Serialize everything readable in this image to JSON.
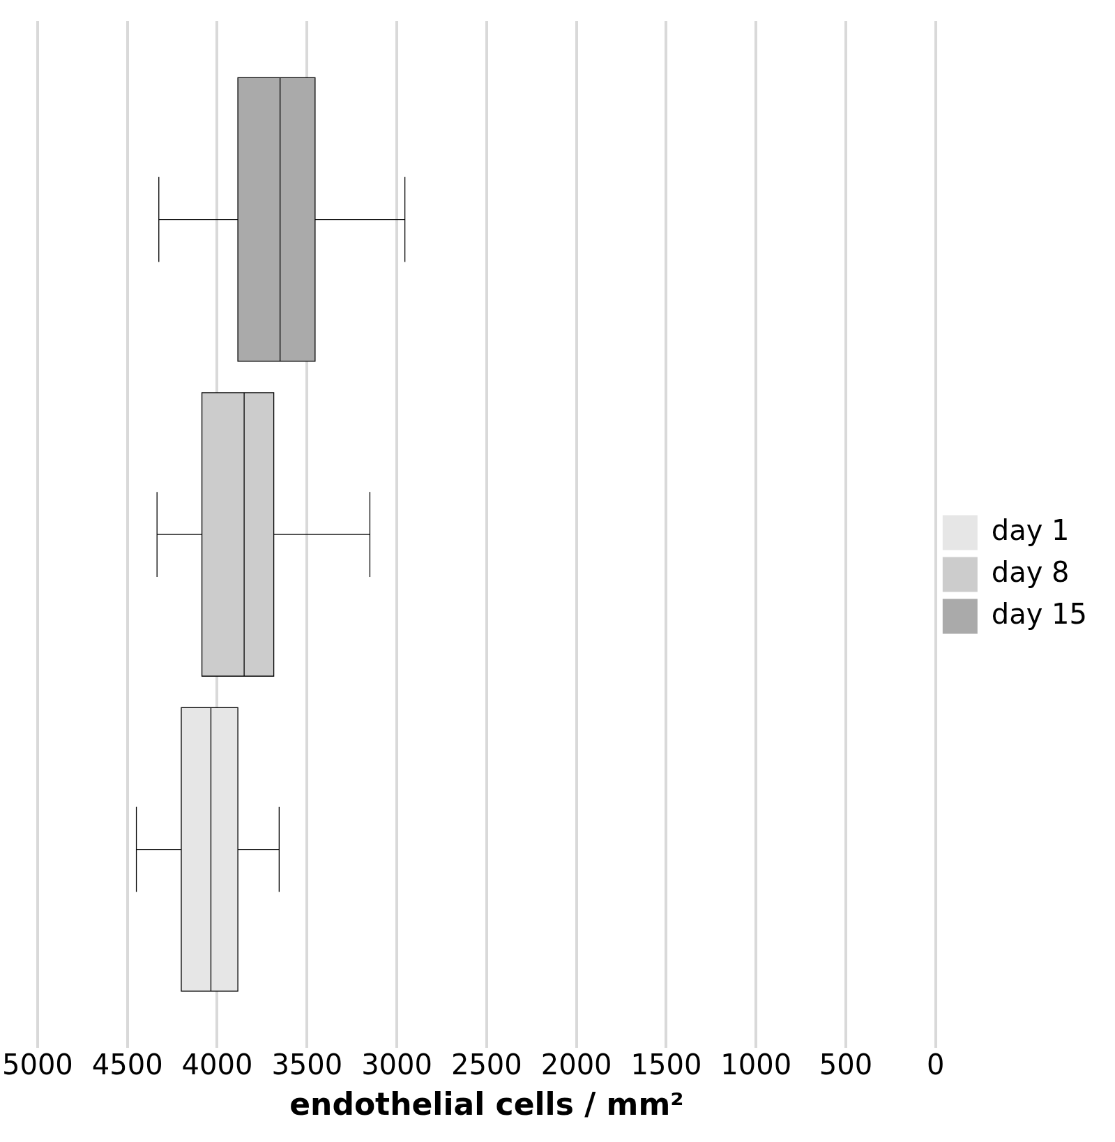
{
  "chart_data": {
    "type": "box",
    "orientation": "horizontal",
    "xlabel": "endothelial cells / mm²",
    "categories": [
      null
    ],
    "series": [
      {
        "name": "day 15",
        "color": "#aaaaaa",
        "boxes": [
          {
            "low": 2955,
            "q1": 3455,
            "median": 3650,
            "q3": 3885,
            "high": 4325
          }
        ]
      },
      {
        "name": "day 8",
        "color": "#cccccc",
        "boxes": [
          {
            "low": 3150,
            "q1": 3685,
            "median": 3850,
            "q3": 4085,
            "high": 4335
          }
        ]
      },
      {
        "name": "day 1",
        "color": "#e6e6e6",
        "boxes": [
          {
            "low": 3655,
            "q1": 3885,
            "median": 4035,
            "q3": 4200,
            "high": 4450
          }
        ]
      }
    ],
    "xlim": [
      5000,
      0
    ],
    "xticks": [
      5000,
      4500,
      4000,
      3500,
      3000,
      2500,
      2000,
      1500,
      1000,
      500,
      0
    ],
    "grid": "x",
    "legend": "right"
  }
}
